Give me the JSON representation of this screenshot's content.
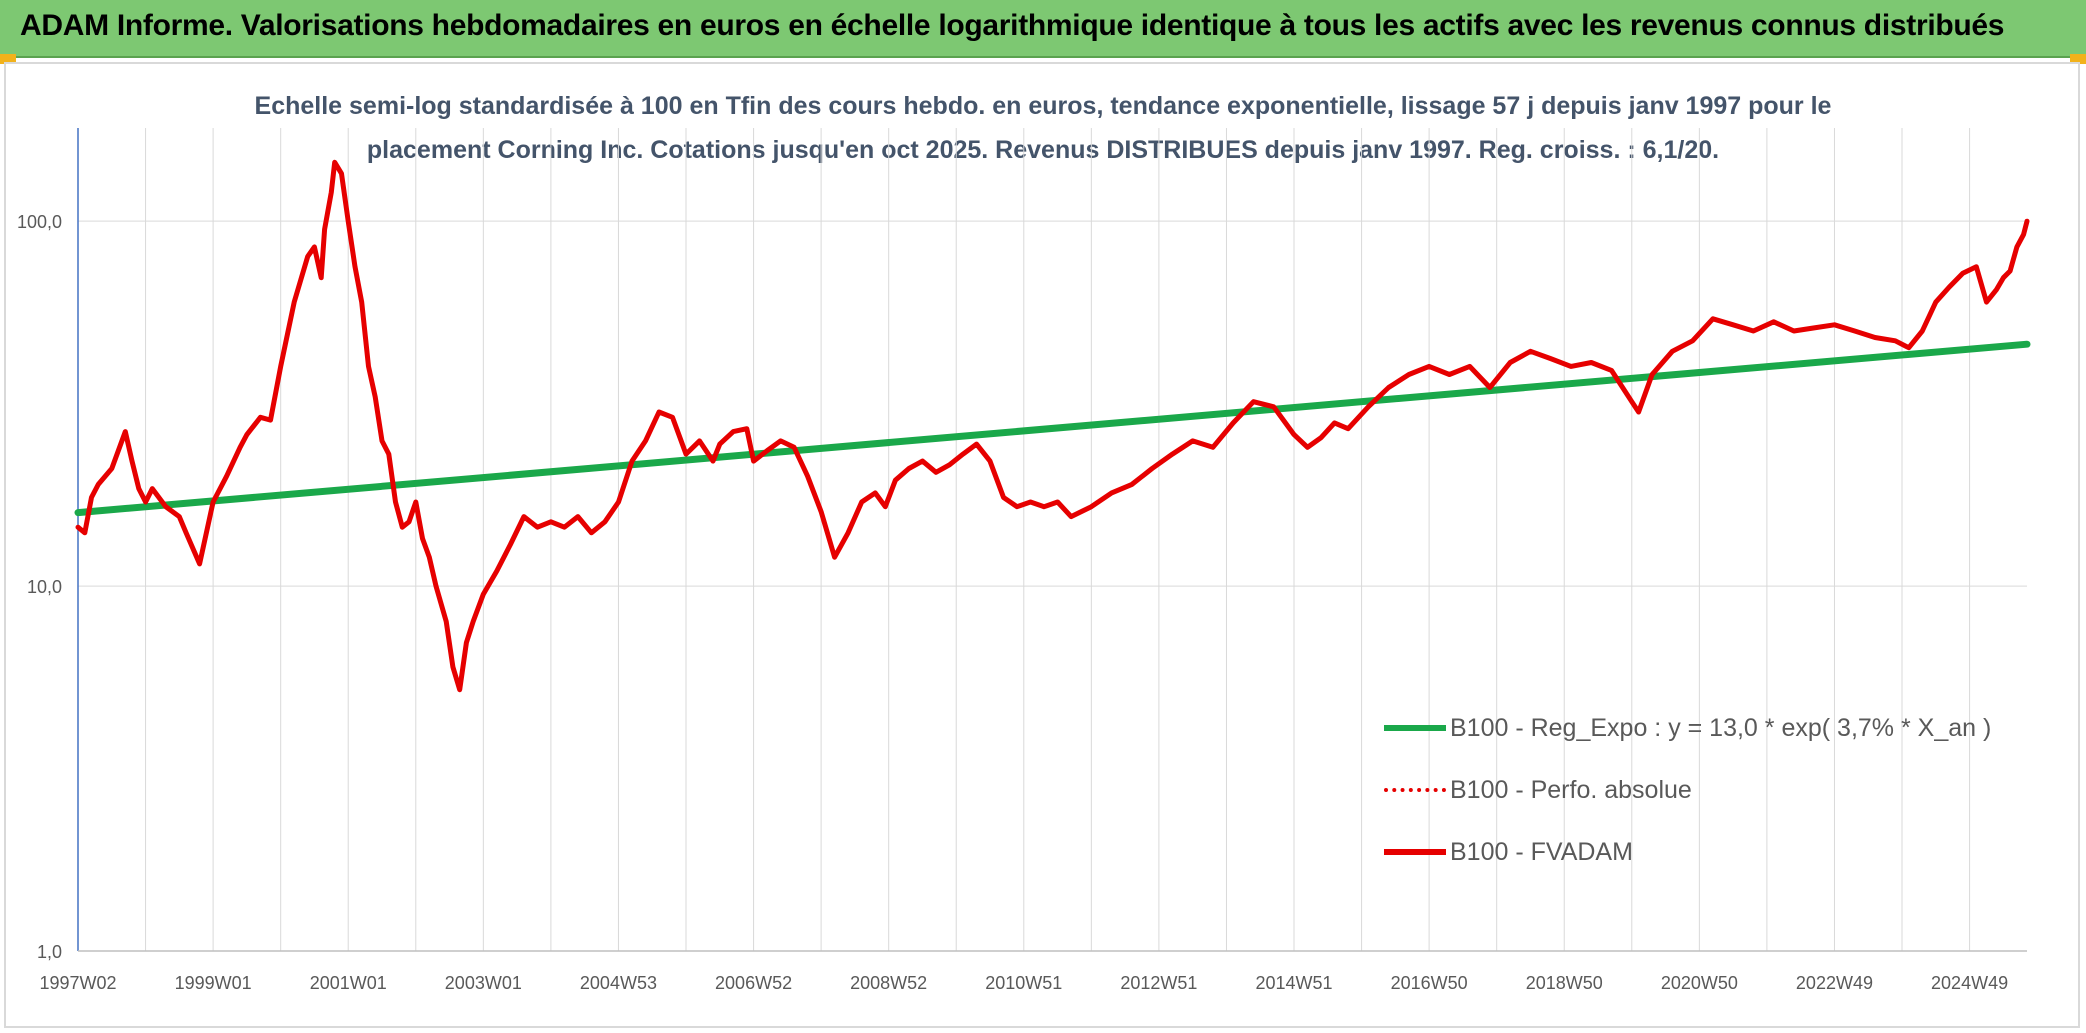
{
  "header": {
    "title": "ADAM Informe. Valorisations hebdomadaires en euros en échelle logarithmique identique à tous les actifs avec les revenus connus distribués"
  },
  "colors": {
    "banner": "#7dc872",
    "regression": "#1aa84a",
    "fvadam": "#e60000",
    "perfo": "#e60000",
    "title_text": "#44546a",
    "grid": "#d9d9d9"
  },
  "chart_data": {
    "type": "line",
    "title_line1": "Echelle semi-log standardisée à 100 en Tfin des cours hebdo. en euros, tendance exponentielle, lissage 57 j depuis janv 1997 pour le",
    "title_line2": "placement Corning Inc. Cotations jusqu'en oct 2025. Revenus DISTRIBUES depuis janv 1997. Reg. croiss. : 6,1/20.",
    "y_scale": "log",
    "ylim": [
      1,
      180
    ],
    "xlim": [
      1997.0,
      2025.85
    ],
    "grid": true,
    "legend_position": "bottom-right",
    "y_ticks": [
      {
        "value": 1,
        "label": "1,0"
      },
      {
        "value": 10,
        "label": "10,0"
      },
      {
        "value": 100,
        "label": "100,0"
      }
    ],
    "x_ticks": [
      {
        "x": 1997.0,
        "label": "1997W02"
      },
      {
        "x": 1999.0,
        "label": "1999W01"
      },
      {
        "x": 2001.0,
        "label": "2001W01"
      },
      {
        "x": 2003.0,
        "label": "2003W01"
      },
      {
        "x": 2005.0,
        "label": "2004W53"
      },
      {
        "x": 2007.0,
        "label": "2006W52"
      },
      {
        "x": 2009.0,
        "label": "2008W52"
      },
      {
        "x": 2011.0,
        "label": "2010W51"
      },
      {
        "x": 2013.0,
        "label": "2012W51"
      },
      {
        "x": 2015.0,
        "label": "2014W51"
      },
      {
        "x": 2017.0,
        "label": "2016W50"
      },
      {
        "x": 2019.0,
        "label": "2018W50"
      },
      {
        "x": 2021.0,
        "label": "2020W50"
      },
      {
        "x": 2023.0,
        "label": "2022W49"
      },
      {
        "x": 2025.0,
        "label": "2024W49"
      }
    ],
    "series": [
      {
        "name": "B100 - Reg_Expo : y = 13,0 * exp( 3,7% *  X_an )",
        "style": "solid",
        "x": [
          1997.0,
          2025.85
        ],
        "y": [
          15.9,
          46.0
        ]
      },
      {
        "name": "B100 - Perfo. absolue",
        "style": "dotted",
        "x": [],
        "y": []
      },
      {
        "name": "B100 - FVADAM",
        "style": "solid",
        "x": [
          1997.0,
          1997.1,
          1997.2,
          1997.3,
          1997.5,
          1997.7,
          1997.8,
          1997.9,
          1998.0,
          1998.1,
          1998.3,
          1998.5,
          1998.6,
          1998.8,
          1999.0,
          1999.2,
          1999.4,
          1999.5,
          1999.7,
          1999.85,
          2000.0,
          2000.2,
          2000.4,
          2000.5,
          2000.6,
          2000.65,
          2000.75,
          2000.8,
          2000.9,
          2001.0,
          2001.1,
          2001.2,
          2001.3,
          2001.4,
          2001.5,
          2001.6,
          2001.7,
          2001.8,
          2001.9,
          2002.0,
          2002.1,
          2002.2,
          2002.3,
          2002.45,
          2002.55,
          2002.65,
          2002.75,
          2002.85,
          2003.0,
          2003.2,
          2003.4,
          2003.6,
          2003.8,
          2004.0,
          2004.2,
          2004.4,
          2004.6,
          2004.8,
          2005.0,
          2005.2,
          2005.4,
          2005.6,
          2005.8,
          2006.0,
          2006.2,
          2006.4,
          2006.5,
          2006.7,
          2006.9,
          2007.0,
          2007.2,
          2007.4,
          2007.6,
          2007.8,
          2008.0,
          2008.2,
          2008.4,
          2008.6,
          2008.8,
          2008.95,
          2009.1,
          2009.3,
          2009.5,
          2009.7,
          2009.9,
          2010.1,
          2010.3,
          2010.5,
          2010.7,
          2010.9,
          2011.1,
          2011.3,
          2011.5,
          2011.7,
          2012.0,
          2012.3,
          2012.6,
          2012.9,
          2013.2,
          2013.5,
          2013.8,
          2014.1,
          2014.4,
          2014.7,
          2015.0,
          2015.2,
          2015.4,
          2015.6,
          2015.8,
          2016.1,
          2016.4,
          2016.7,
          2017.0,
          2017.3,
          2017.6,
          2017.9,
          2018.2,
          2018.5,
          2018.8,
          2019.1,
          2019.4,
          2019.7,
          2020.0,
          2020.1,
          2020.3,
          2020.6,
          2020.9,
          2021.2,
          2021.5,
          2021.8,
          2022.1,
          2022.4,
          2022.7,
          2023.0,
          2023.3,
          2023.6,
          2023.9,
          2024.1,
          2024.3,
          2024.5,
          2024.7,
          2024.9,
          2025.1,
          2025.25,
          2025.4,
          2025.5,
          2025.6,
          2025.7,
          2025.8,
          2025.85
        ],
        "y": [
          14.5,
          14.0,
          17.5,
          19.0,
          21.0,
          26.5,
          22.0,
          18.5,
          17.0,
          18.5,
          16.5,
          15.5,
          14.0,
          11.5,
          17.0,
          20.0,
          24.0,
          26.0,
          29.0,
          28.5,
          40.0,
          60.0,
          80.0,
          85.0,
          70.0,
          95.0,
          120.0,
          145.0,
          135.0,
          100.0,
          75.0,
          60.0,
          40.0,
          33.0,
          25.0,
          23.0,
          17.0,
          14.5,
          15.0,
          17.0,
          13.5,
          12.0,
          10.0,
          8.0,
          6.0,
          5.2,
          7.0,
          8.0,
          9.5,
          11.0,
          13.0,
          15.5,
          14.5,
          15.0,
          14.5,
          15.5,
          14.0,
          15.0,
          17.0,
          22.0,
          25.0,
          30.0,
          29.0,
          23.0,
          25.0,
          22.0,
          24.5,
          26.5,
          27.0,
          22.0,
          23.5,
          25.0,
          24.0,
          20.0,
          16.0,
          12.0,
          14.0,
          17.0,
          18.0,
          16.5,
          19.5,
          21.0,
          22.0,
          20.5,
          21.5,
          23.0,
          24.5,
          22.0,
          17.5,
          16.5,
          17.0,
          16.5,
          17.0,
          15.5,
          16.5,
          18.0,
          19.0,
          21.0,
          23.0,
          25.0,
          24.0,
          28.0,
          32.0,
          31.0,
          26.0,
          24.0,
          25.5,
          28.0,
          27.0,
          31.0,
          35.0,
          38.0,
          40.0,
          38.0,
          40.0,
          35.0,
          41.0,
          44.0,
          42.0,
          40.0,
          41.0,
          39.0,
          32.0,
          30.0,
          38.0,
          44.0,
          47.0,
          54.0,
          52.0,
          50.0,
          53.0,
          50.0,
          51.0,
          52.0,
          50.0,
          48.0,
          47.0,
          45.0,
          50.0,
          60.0,
          66.0,
          72.0,
          75.0,
          60.0,
          65.0,
          70.0,
          73.0,
          85.0,
          92.0,
          100.0
        ]
      }
    ]
  },
  "legend": {
    "items": [
      {
        "label": "B100 - Reg_Expo : y = 13,0 * exp( 3,7% *  X_an )"
      },
      {
        "label": "B100 - Perfo. absolue"
      },
      {
        "label": "B100 - FVADAM"
      }
    ]
  }
}
